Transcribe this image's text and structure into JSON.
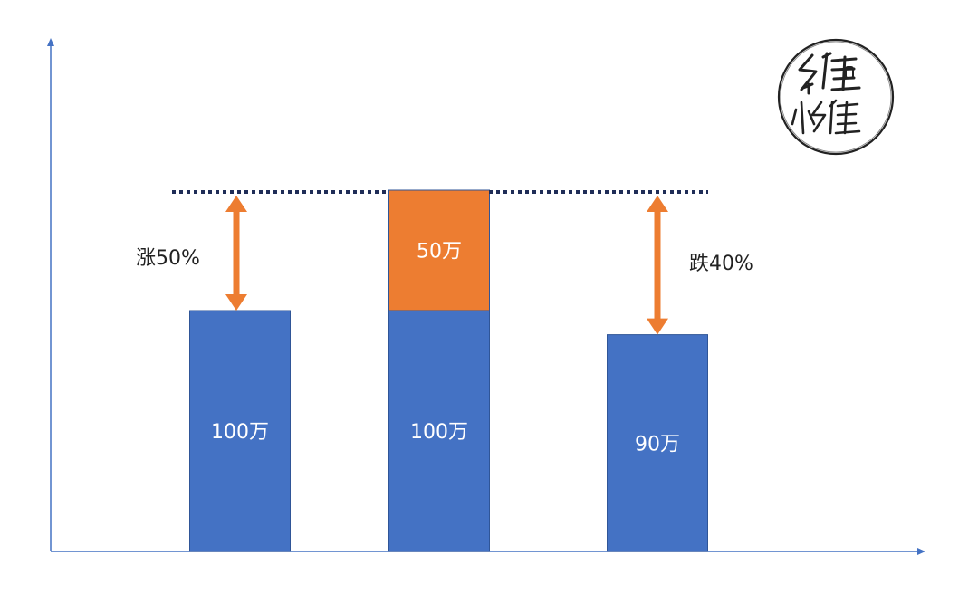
{
  "chart_data": {
    "type": "bar",
    "stacked": true,
    "title": "",
    "xlabel": "",
    "ylabel": "",
    "ylim": [
      0,
      175
    ],
    "grid": false,
    "legend": "none",
    "categories": [
      "",
      "",
      ""
    ],
    "bars": [
      {
        "segments": [
          {
            "value": 100,
            "label": "100万",
            "color": "#4472C4"
          }
        ]
      },
      {
        "segments": [
          {
            "value": 100,
            "label": "100万",
            "color": "#4472C4"
          },
          {
            "value": 50,
            "label": "50万",
            "color": "#ED7D31"
          }
        ]
      },
      {
        "segments": [
          {
            "value": 90,
            "label": "90万",
            "color": "#4472C4"
          }
        ]
      }
    ],
    "reference_line": {
      "value": 150,
      "style": "dotted",
      "color": "#1F2D57"
    },
    "annotations": [
      {
        "text": "涨50%",
        "from": 100,
        "to": 150,
        "bar_index": 0,
        "color": "#ED7D31"
      },
      {
        "text": "跌40%",
        "from": 90,
        "to": 150,
        "bar_index": 2,
        "color": "#ED7D31"
      }
    ]
  },
  "stamp": {
    "text": "小维",
    "icon": "signature-seal-icon"
  },
  "colors": {
    "axis": "#4472C4",
    "bar_label": "#ffffff",
    "annotation_text": "#222222",
    "stamp": "#222222"
  }
}
